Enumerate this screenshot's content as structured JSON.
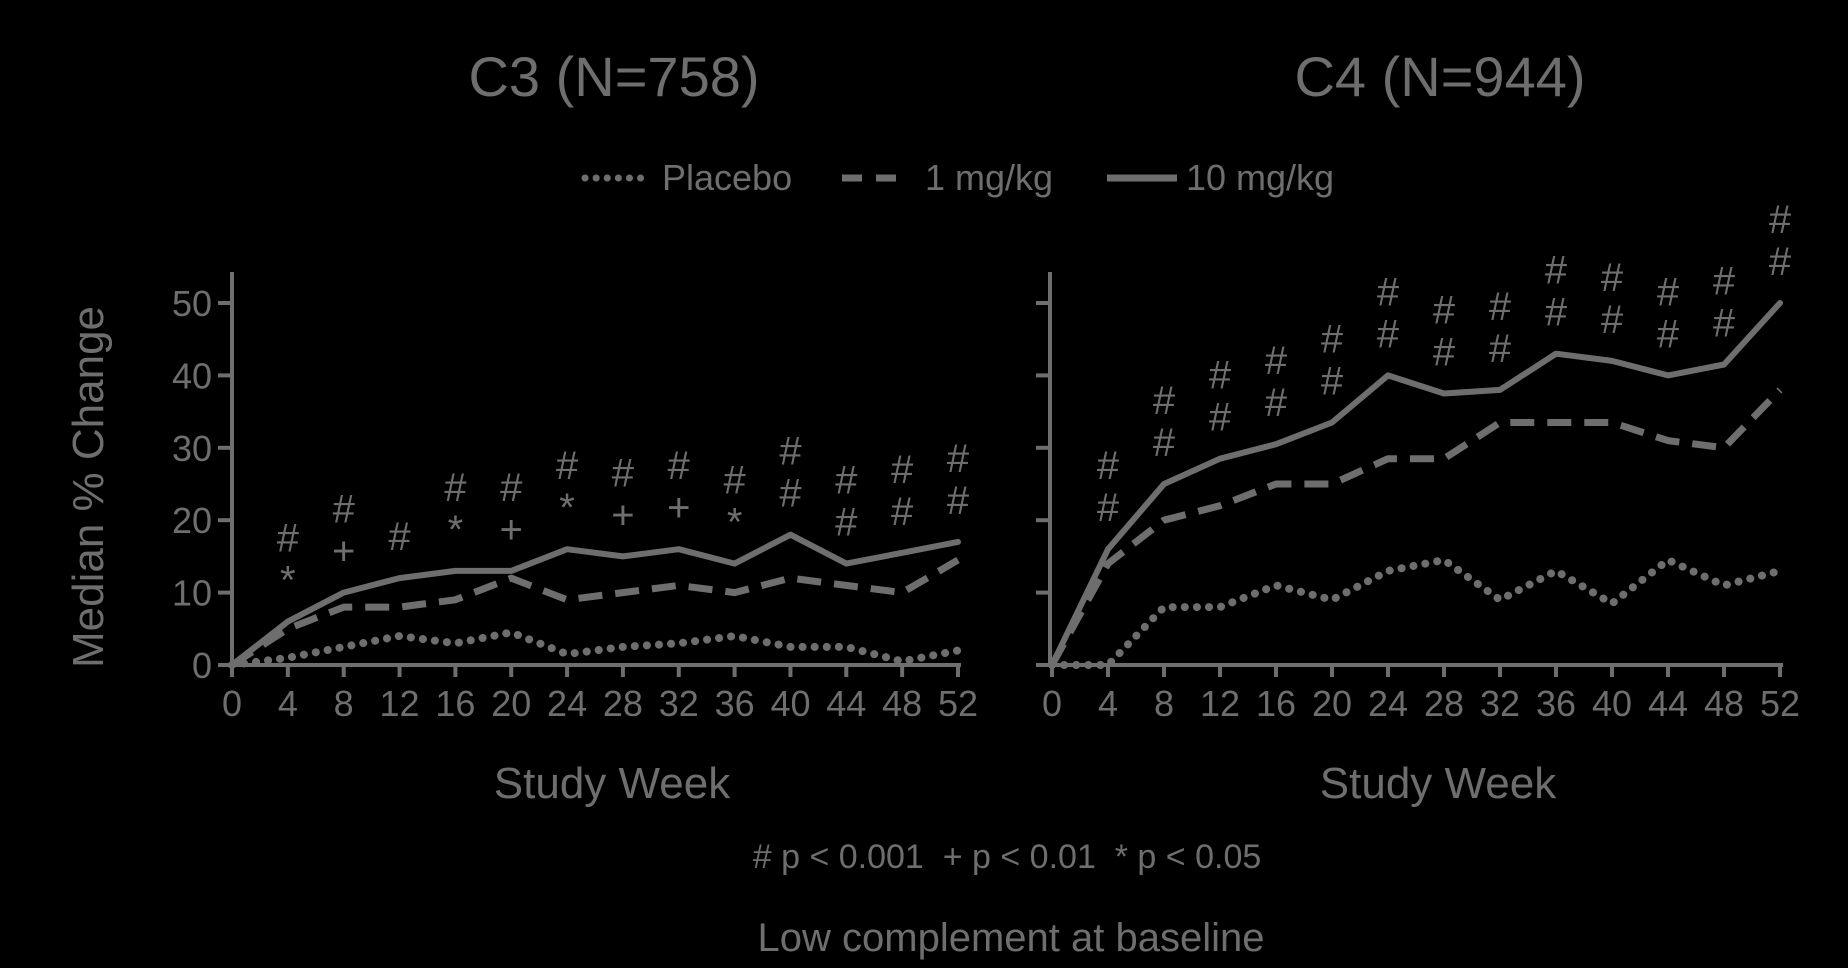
{
  "colors": {
    "background": "#000000",
    "ink": "#6e6e6e"
  },
  "legend": {
    "position": "top-center",
    "items": [
      {
        "label": "Placebo",
        "style": "dotted"
      },
      {
        "label": "1 mg/kg",
        "style": "dashed"
      },
      {
        "label": "10 mg/kg",
        "style": "solid"
      }
    ]
  },
  "footnote": "# p < 0.001  + p < 0.01  * p < 0.05",
  "caption": "Low complement at baseline",
  "chart_data": [
    {
      "type": "line",
      "title": "C3 (N=758)",
      "xlabel": "Study Week",
      "ylabel": "Median % Change",
      "x": [
        0,
        4,
        8,
        12,
        16,
        20,
        24,
        28,
        32,
        36,
        40,
        44,
        48,
        52
      ],
      "xticks": [
        "0",
        "4",
        "8",
        "12",
        "16",
        "20",
        "24",
        "28",
        "32",
        "36",
        "40",
        "44",
        "48",
        "52"
      ],
      "yticks": [
        "0",
        "10",
        "20",
        "30",
        "40",
        "50"
      ],
      "xlim": [
        0,
        52
      ],
      "ylim": [
        0,
        50
      ],
      "grid": false,
      "series": [
        {
          "name": "Placebo",
          "values": [
            0,
            1,
            2.5,
            4,
            3,
            4.5,
            1.5,
            2.5,
            3,
            4,
            2.5,
            2.5,
            0.5,
            2
          ]
        },
        {
          "name": "1 mg/kg",
          "values": [
            0,
            5,
            8,
            8,
            9,
            12,
            9,
            10,
            11,
            10,
            12,
            11,
            10,
            14.5
          ]
        },
        {
          "name": "10 mg/kg",
          "values": [
            0,
            6,
            10,
            12,
            13,
            13,
            16,
            15,
            16,
            14,
            18,
            14,
            15.5,
            17
          ]
        }
      ],
      "annotations": [
        {
          "x": 4,
          "symbols": [
            "#",
            "*"
          ]
        },
        {
          "x": 8,
          "symbols": [
            "#",
            "+"
          ]
        },
        {
          "x": 12,
          "symbols": [
            "#"
          ]
        },
        {
          "x": 16,
          "symbols": [
            "#",
            "*"
          ]
        },
        {
          "x": 20,
          "symbols": [
            "#",
            "+"
          ]
        },
        {
          "x": 24,
          "symbols": [
            "#",
            "*"
          ]
        },
        {
          "x": 28,
          "symbols": [
            "#",
            "+"
          ]
        },
        {
          "x": 32,
          "symbols": [
            "#",
            "+"
          ]
        },
        {
          "x": 36,
          "symbols": [
            "#",
            "*"
          ]
        },
        {
          "x": 40,
          "symbols": [
            "#",
            "#"
          ]
        },
        {
          "x": 44,
          "symbols": [
            "#",
            "#"
          ]
        },
        {
          "x": 48,
          "symbols": [
            "#",
            "#"
          ]
        },
        {
          "x": 52,
          "symbols": [
            "#",
            "#"
          ]
        }
      ]
    },
    {
      "type": "line",
      "title": "C4 (N=944)",
      "xlabel": "Study Week",
      "ylabel": "",
      "x": [
        0,
        4,
        8,
        12,
        16,
        20,
        24,
        28,
        32,
        36,
        40,
        44,
        48,
        52
      ],
      "xticks": [
        "0",
        "4",
        "8",
        "12",
        "16",
        "20",
        "24",
        "28",
        "32",
        "36",
        "40",
        "44",
        "48",
        "52"
      ],
      "yticks": [
        "",
        "",
        "",
        "",
        "",
        ""
      ],
      "xlim": [
        0,
        52
      ],
      "ylim": [
        0,
        50
      ],
      "grid": false,
      "series": [
        {
          "name": "Placebo",
          "values": [
            0,
            0,
            8,
            8,
            11,
            9,
            13,
            14.5,
            9,
            13,
            8.5,
            14.5,
            11,
            13
          ]
        },
        {
          "name": "1 mg/kg",
          "values": [
            0,
            14,
            20,
            22,
            25,
            25,
            28.5,
            28.5,
            33.5,
            33.5,
            33.5,
            31,
            30,
            38
          ]
        },
        {
          "name": "10 mg/kg",
          "values": [
            0,
            16,
            25,
            28.5,
            30.5,
            33.5,
            40,
            37.5,
            38,
            43,
            42,
            40,
            41.5,
            50
          ]
        }
      ],
      "annotations": [
        {
          "x": 4,
          "symbols": [
            "#",
            "#"
          ]
        },
        {
          "x": 8,
          "symbols": [
            "#",
            "#"
          ]
        },
        {
          "x": 12,
          "symbols": [
            "#",
            "#"
          ]
        },
        {
          "x": 16,
          "symbols": [
            "#",
            "#"
          ]
        },
        {
          "x": 20,
          "symbols": [
            "#",
            "#"
          ]
        },
        {
          "x": 24,
          "symbols": [
            "#",
            "#"
          ]
        },
        {
          "x": 28,
          "symbols": [
            "#",
            "#"
          ]
        },
        {
          "x": 32,
          "symbols": [
            "#",
            "#"
          ]
        },
        {
          "x": 36,
          "symbols": [
            "#",
            "#"
          ]
        },
        {
          "x": 40,
          "symbols": [
            "#",
            "#"
          ]
        },
        {
          "x": 44,
          "symbols": [
            "#",
            "#"
          ]
        },
        {
          "x": 48,
          "symbols": [
            "#",
            "#"
          ]
        },
        {
          "x": 52,
          "symbols": [
            "#",
            "#"
          ]
        }
      ]
    }
  ]
}
